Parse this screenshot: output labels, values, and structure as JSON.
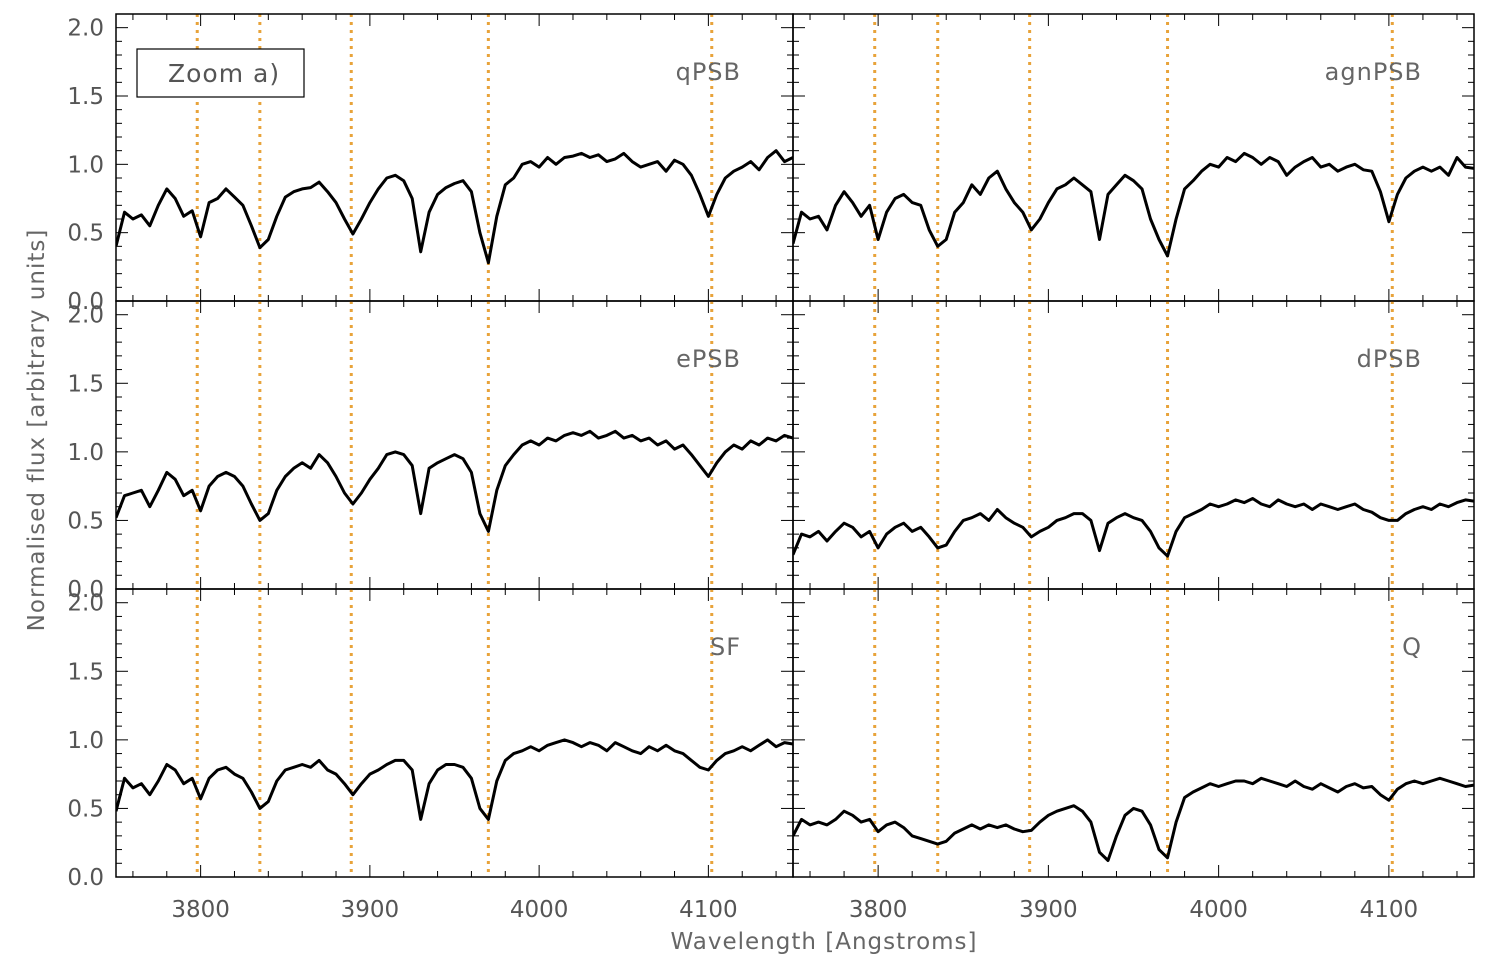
{
  "figure": {
    "xlabel": "Wavelength [Angstroms]",
    "ylabel": "Normalised flux [arbitrary units]",
    "zoom_label": "Zoom a)"
  },
  "chart_data": {
    "type": "line",
    "xlim": [
      3750,
      4150
    ],
    "ylim": [
      0.0,
      2.1
    ],
    "x_ticks": [
      3800,
      3900,
      4000,
      4100
    ],
    "y_ticks": [
      0.0,
      0.5,
      1.0,
      1.5,
      2.0
    ],
    "x_tick_labels": [
      "3800",
      "3900",
      "4000",
      "4100"
    ],
    "y_tick_labels": [
      "0.0",
      "0.5",
      "1.0",
      "1.5",
      "2.0"
    ],
    "grid": false,
    "line_color": "#000000",
    "vline_color": "#E8A33A",
    "vlines": [
      3798,
      3835,
      3889,
      3970,
      4102
    ],
    "panels": [
      {
        "label": "qPSB",
        "position": "top-left",
        "x": [
          3750,
          3755,
          3760,
          3765,
          3770,
          3775,
          3780,
          3785,
          3790,
          3795,
          3800,
          3805,
          3810,
          3815,
          3820,
          3825,
          3830,
          3835,
          3840,
          3845,
          3850,
          3855,
          3860,
          3865,
          3870,
          3875,
          3880,
          3885,
          3890,
          3895,
          3900,
          3905,
          3910,
          3915,
          3920,
          3925,
          3930,
          3935,
          3940,
          3945,
          3950,
          3955,
          3960,
          3965,
          3970,
          3975,
          3980,
          3985,
          3990,
          3995,
          4000,
          4005,
          4010,
          4015,
          4020,
          4025,
          4030,
          4035,
          4040,
          4045,
          4050,
          4055,
          4060,
          4065,
          4070,
          4075,
          4080,
          4085,
          4090,
          4095,
          4100,
          4105,
          4110,
          4115,
          4120,
          4125,
          4130,
          4135,
          4140,
          4145,
          4150
        ],
        "y": [
          0.4,
          0.65,
          0.6,
          0.63,
          0.55,
          0.7,
          0.82,
          0.75,
          0.62,
          0.66,
          0.47,
          0.72,
          0.75,
          0.82,
          0.76,
          0.7,
          0.55,
          0.39,
          0.45,
          0.62,
          0.76,
          0.8,
          0.82,
          0.83,
          0.87,
          0.8,
          0.72,
          0.6,
          0.49,
          0.6,
          0.72,
          0.82,
          0.9,
          0.92,
          0.88,
          0.75,
          0.36,
          0.65,
          0.78,
          0.83,
          0.86,
          0.88,
          0.8,
          0.5,
          0.28,
          0.62,
          0.85,
          0.9,
          1.0,
          1.02,
          0.98,
          1.05,
          1.0,
          1.05,
          1.06,
          1.08,
          1.05,
          1.07,
          1.02,
          1.04,
          1.08,
          1.02,
          0.98,
          1.0,
          1.02,
          0.95,
          1.03,
          1.0,
          0.92,
          0.78,
          0.62,
          0.78,
          0.9,
          0.95,
          0.98,
          1.02,
          0.96,
          1.05,
          1.1,
          1.02,
          1.05
        ]
      },
      {
        "label": "agnPSB",
        "position": "top-right",
        "x": [
          3750,
          3755,
          3760,
          3765,
          3770,
          3775,
          3780,
          3785,
          3790,
          3795,
          3800,
          3805,
          3810,
          3815,
          3820,
          3825,
          3830,
          3835,
          3840,
          3845,
          3850,
          3855,
          3860,
          3865,
          3870,
          3875,
          3880,
          3885,
          3890,
          3895,
          3900,
          3905,
          3910,
          3915,
          3920,
          3925,
          3930,
          3935,
          3940,
          3945,
          3950,
          3955,
          3960,
          3965,
          3970,
          3975,
          3980,
          3985,
          3990,
          3995,
          4000,
          4005,
          4010,
          4015,
          4020,
          4025,
          4030,
          4035,
          4040,
          4045,
          4050,
          4055,
          4060,
          4065,
          4070,
          4075,
          4080,
          4085,
          4090,
          4095,
          4100,
          4105,
          4110,
          4115,
          4120,
          4125,
          4130,
          4135,
          4140,
          4145,
          4150
        ],
        "y": [
          0.42,
          0.65,
          0.6,
          0.62,
          0.52,
          0.7,
          0.8,
          0.72,
          0.62,
          0.7,
          0.45,
          0.65,
          0.75,
          0.78,
          0.72,
          0.7,
          0.52,
          0.4,
          0.45,
          0.65,
          0.72,
          0.85,
          0.78,
          0.9,
          0.95,
          0.82,
          0.72,
          0.65,
          0.52,
          0.6,
          0.72,
          0.82,
          0.85,
          0.9,
          0.85,
          0.8,
          0.45,
          0.78,
          0.85,
          0.92,
          0.88,
          0.82,
          0.6,
          0.45,
          0.33,
          0.6,
          0.82,
          0.88,
          0.95,
          1.0,
          0.98,
          1.05,
          1.02,
          1.08,
          1.05,
          1.0,
          1.05,
          1.02,
          0.92,
          0.98,
          1.02,
          1.05,
          0.98,
          1.0,
          0.95,
          0.98,
          1.0,
          0.96,
          0.95,
          0.8,
          0.58,
          0.78,
          0.9,
          0.95,
          0.98,
          0.95,
          0.98,
          0.92,
          1.05,
          0.98,
          0.97
        ]
      },
      {
        "label": "ePSB",
        "position": "middle-left",
        "x": [
          3750,
          3755,
          3760,
          3765,
          3770,
          3775,
          3780,
          3785,
          3790,
          3795,
          3800,
          3805,
          3810,
          3815,
          3820,
          3825,
          3830,
          3835,
          3840,
          3845,
          3850,
          3855,
          3860,
          3865,
          3870,
          3875,
          3880,
          3885,
          3890,
          3895,
          3900,
          3905,
          3910,
          3915,
          3920,
          3925,
          3930,
          3935,
          3940,
          3945,
          3950,
          3955,
          3960,
          3965,
          3970,
          3975,
          3980,
          3985,
          3990,
          3995,
          4000,
          4005,
          4010,
          4015,
          4020,
          4025,
          4030,
          4035,
          4040,
          4045,
          4050,
          4055,
          4060,
          4065,
          4070,
          4075,
          4080,
          4085,
          4090,
          4095,
          4100,
          4105,
          4110,
          4115,
          4120,
          4125,
          4130,
          4135,
          4140,
          4145,
          4150
        ],
        "y": [
          0.52,
          0.68,
          0.7,
          0.72,
          0.6,
          0.72,
          0.85,
          0.8,
          0.68,
          0.72,
          0.57,
          0.75,
          0.82,
          0.85,
          0.82,
          0.75,
          0.62,
          0.5,
          0.55,
          0.72,
          0.82,
          0.88,
          0.92,
          0.88,
          0.98,
          0.92,
          0.82,
          0.7,
          0.62,
          0.7,
          0.8,
          0.88,
          0.98,
          1.0,
          0.98,
          0.9,
          0.55,
          0.88,
          0.92,
          0.95,
          0.98,
          0.95,
          0.85,
          0.55,
          0.42,
          0.72,
          0.9,
          0.98,
          1.05,
          1.08,
          1.05,
          1.1,
          1.08,
          1.12,
          1.14,
          1.12,
          1.15,
          1.1,
          1.12,
          1.15,
          1.1,
          1.12,
          1.08,
          1.1,
          1.05,
          1.08,
          1.02,
          1.05,
          0.98,
          0.9,
          0.82,
          0.92,
          1.0,
          1.05,
          1.02,
          1.08,
          1.05,
          1.1,
          1.08,
          1.12,
          1.1
        ]
      },
      {
        "label": "dPSB",
        "position": "middle-right",
        "x": [
          3750,
          3755,
          3760,
          3765,
          3770,
          3775,
          3780,
          3785,
          3790,
          3795,
          3800,
          3805,
          3810,
          3815,
          3820,
          3825,
          3830,
          3835,
          3840,
          3845,
          3850,
          3855,
          3860,
          3865,
          3870,
          3875,
          3880,
          3885,
          3890,
          3895,
          3900,
          3905,
          3910,
          3915,
          3920,
          3925,
          3930,
          3935,
          3940,
          3945,
          3950,
          3955,
          3960,
          3965,
          3970,
          3975,
          3980,
          3985,
          3990,
          3995,
          4000,
          4005,
          4010,
          4015,
          4020,
          4025,
          4030,
          4035,
          4040,
          4045,
          4050,
          4055,
          4060,
          4065,
          4070,
          4075,
          4080,
          4085,
          4090,
          4095,
          4100,
          4105,
          4110,
          4115,
          4120,
          4125,
          4130,
          4135,
          4140,
          4145,
          4150
        ],
        "y": [
          0.25,
          0.4,
          0.38,
          0.42,
          0.35,
          0.42,
          0.48,
          0.45,
          0.38,
          0.42,
          0.3,
          0.4,
          0.45,
          0.48,
          0.42,
          0.45,
          0.38,
          0.3,
          0.32,
          0.42,
          0.5,
          0.52,
          0.55,
          0.5,
          0.58,
          0.52,
          0.48,
          0.45,
          0.38,
          0.42,
          0.45,
          0.5,
          0.52,
          0.55,
          0.55,
          0.5,
          0.28,
          0.48,
          0.52,
          0.55,
          0.52,
          0.5,
          0.42,
          0.3,
          0.24,
          0.42,
          0.52,
          0.55,
          0.58,
          0.62,
          0.6,
          0.62,
          0.65,
          0.63,
          0.66,
          0.62,
          0.6,
          0.65,
          0.62,
          0.6,
          0.62,
          0.58,
          0.62,
          0.6,
          0.58,
          0.6,
          0.62,
          0.58,
          0.56,
          0.52,
          0.5,
          0.5,
          0.55,
          0.58,
          0.6,
          0.58,
          0.62,
          0.6,
          0.63,
          0.65,
          0.64
        ]
      },
      {
        "label": "SF",
        "position": "bottom-left",
        "x": [
          3750,
          3755,
          3760,
          3765,
          3770,
          3775,
          3780,
          3785,
          3790,
          3795,
          3800,
          3805,
          3810,
          3815,
          3820,
          3825,
          3830,
          3835,
          3840,
          3845,
          3850,
          3855,
          3860,
          3865,
          3870,
          3875,
          3880,
          3885,
          3890,
          3895,
          3900,
          3905,
          3910,
          3915,
          3920,
          3925,
          3930,
          3935,
          3940,
          3945,
          3950,
          3955,
          3960,
          3965,
          3970,
          3975,
          3980,
          3985,
          3990,
          3995,
          4000,
          4005,
          4010,
          4015,
          4020,
          4025,
          4030,
          4035,
          4040,
          4045,
          4050,
          4055,
          4060,
          4065,
          4070,
          4075,
          4080,
          4085,
          4090,
          4095,
          4100,
          4105,
          4110,
          4115,
          4120,
          4125,
          4130,
          4135,
          4140,
          4145,
          4150
        ],
        "y": [
          0.48,
          0.72,
          0.65,
          0.68,
          0.6,
          0.7,
          0.82,
          0.78,
          0.68,
          0.72,
          0.57,
          0.72,
          0.78,
          0.8,
          0.75,
          0.72,
          0.62,
          0.5,
          0.55,
          0.7,
          0.78,
          0.8,
          0.82,
          0.8,
          0.85,
          0.78,
          0.75,
          0.68,
          0.6,
          0.68,
          0.75,
          0.78,
          0.82,
          0.85,
          0.85,
          0.78,
          0.42,
          0.68,
          0.78,
          0.82,
          0.82,
          0.8,
          0.72,
          0.5,
          0.42,
          0.7,
          0.85,
          0.9,
          0.92,
          0.95,
          0.92,
          0.96,
          0.98,
          1.0,
          0.98,
          0.95,
          0.98,
          0.96,
          0.92,
          0.98,
          0.95,
          0.92,
          0.9,
          0.95,
          0.92,
          0.96,
          0.92,
          0.9,
          0.85,
          0.8,
          0.78,
          0.85,
          0.9,
          0.92,
          0.95,
          0.92,
          0.96,
          1.0,
          0.95,
          0.98,
          0.97
        ]
      },
      {
        "label": "Q",
        "position": "bottom-right",
        "x": [
          3750,
          3755,
          3760,
          3765,
          3770,
          3775,
          3780,
          3785,
          3790,
          3795,
          3800,
          3805,
          3810,
          3815,
          3820,
          3825,
          3830,
          3835,
          3840,
          3845,
          3850,
          3855,
          3860,
          3865,
          3870,
          3875,
          3880,
          3885,
          3890,
          3895,
          3900,
          3905,
          3910,
          3915,
          3920,
          3925,
          3930,
          3935,
          3940,
          3945,
          3950,
          3955,
          3960,
          3965,
          3970,
          3975,
          3980,
          3985,
          3990,
          3995,
          4000,
          4005,
          4010,
          4015,
          4020,
          4025,
          4030,
          4035,
          4040,
          4045,
          4050,
          4055,
          4060,
          4065,
          4070,
          4075,
          4080,
          4085,
          4090,
          4095,
          4100,
          4105,
          4110,
          4115,
          4120,
          4125,
          4130,
          4135,
          4140,
          4145,
          4150
        ],
        "y": [
          0.3,
          0.42,
          0.38,
          0.4,
          0.38,
          0.42,
          0.48,
          0.45,
          0.4,
          0.42,
          0.33,
          0.38,
          0.4,
          0.36,
          0.3,
          0.28,
          0.26,
          0.24,
          0.26,
          0.32,
          0.35,
          0.38,
          0.35,
          0.38,
          0.36,
          0.38,
          0.35,
          0.33,
          0.34,
          0.4,
          0.45,
          0.48,
          0.5,
          0.52,
          0.48,
          0.4,
          0.18,
          0.12,
          0.3,
          0.45,
          0.5,
          0.48,
          0.38,
          0.2,
          0.14,
          0.4,
          0.58,
          0.62,
          0.65,
          0.68,
          0.66,
          0.68,
          0.7,
          0.7,
          0.68,
          0.72,
          0.7,
          0.68,
          0.66,
          0.7,
          0.66,
          0.64,
          0.68,
          0.65,
          0.62,
          0.66,
          0.68,
          0.65,
          0.66,
          0.6,
          0.56,
          0.64,
          0.68,
          0.7,
          0.68,
          0.7,
          0.72,
          0.7,
          0.68,
          0.66,
          0.67
        ]
      }
    ]
  }
}
